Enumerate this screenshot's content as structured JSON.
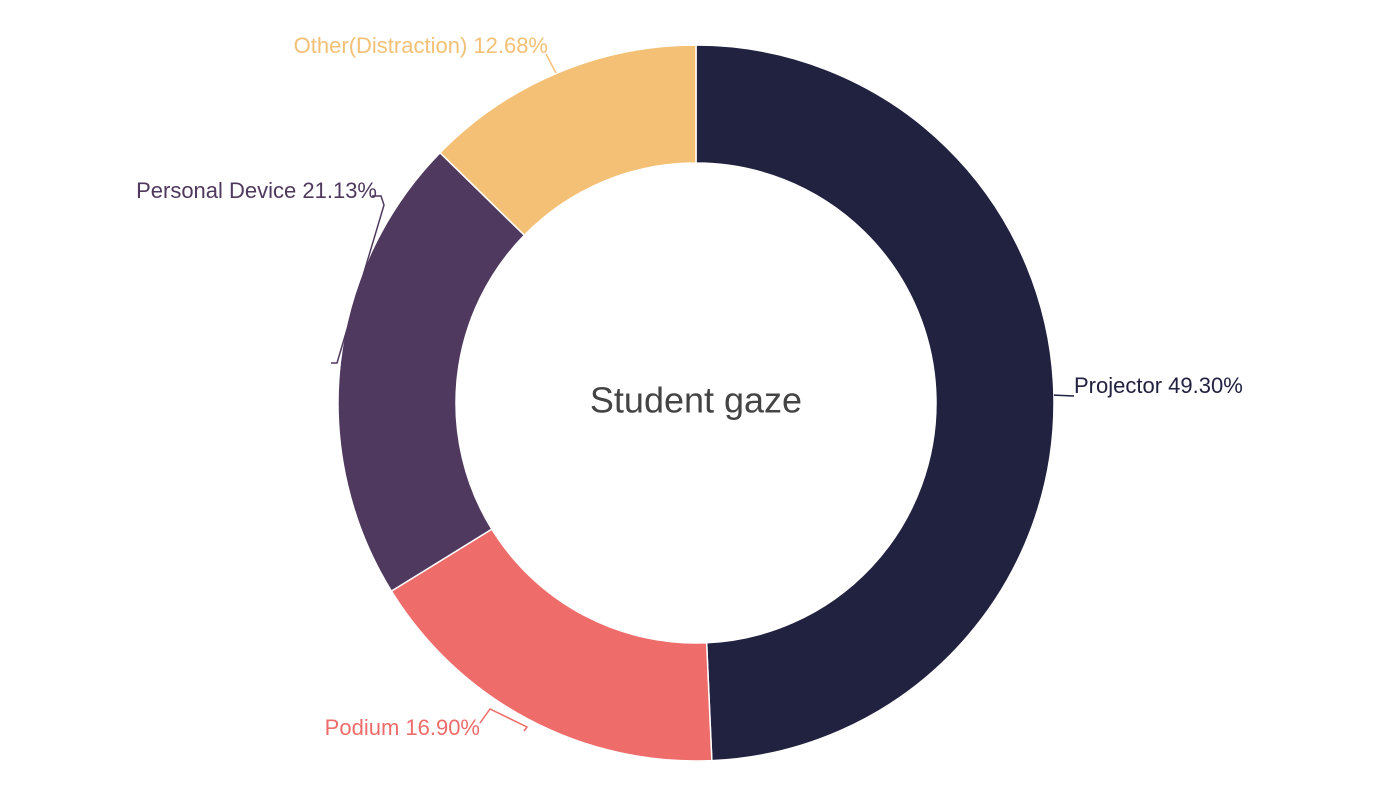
{
  "chart_data": {
    "type": "pie",
    "variant": "donut",
    "title": "Student gaze",
    "slices": [
      {
        "label": "Projector 49.30%",
        "value": 49.3,
        "color": "#212140"
      },
      {
        "label": "Podium 16.90%",
        "value": 16.9,
        "color": "#ee6c6a"
      },
      {
        "label": "Personal Device 21.13%",
        "value": 21.13,
        "color": "#4f395e"
      },
      {
        "label": "Other(Distraction) 12.68%",
        "value": 12.68,
        "color": "#f3c076"
      }
    ],
    "legend": "none",
    "label_placement": "outside"
  }
}
